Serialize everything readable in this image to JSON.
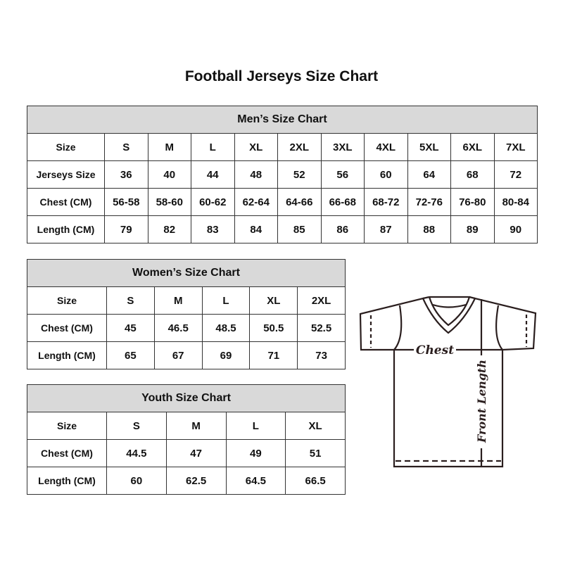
{
  "title": "Football Jerseys Size Chart",
  "men": {
    "caption": "Men’s Size Chart",
    "first_col_width": 110,
    "rows": [
      [
        "Size",
        "S",
        "M",
        "L",
        "XL",
        "2XL",
        "3XL",
        "4XL",
        "5XL",
        "6XL",
        "7XL"
      ],
      [
        "Jerseys Size",
        "36",
        "40",
        "44",
        "48",
        "52",
        "56",
        "60",
        "64",
        "68",
        "72"
      ],
      [
        "Chest (CM)",
        "56-58",
        "58-60",
        "60-62",
        "62-64",
        "64-66",
        "66-68",
        "68-72",
        "72-76",
        "76-80",
        "80-84"
      ],
      [
        "Length (CM)",
        "79",
        "82",
        "83",
        "84",
        "85",
        "86",
        "87",
        "88",
        "89",
        "90"
      ]
    ]
  },
  "women": {
    "caption": "Women’s Size Chart",
    "first_col_width": 113,
    "rows": [
      [
        "Size",
        "S",
        "M",
        "L",
        "XL",
        "2XL"
      ],
      [
        "Chest (CM)",
        "45",
        "46.5",
        "48.5",
        "50.5",
        "52.5"
      ],
      [
        "Length (CM)",
        "65",
        "67",
        "69",
        "71",
        "73"
      ]
    ]
  },
  "youth": {
    "caption": "Youth Size Chart",
    "first_col_width": 113,
    "rows": [
      [
        "Size",
        "S",
        "M",
        "L",
        "XL"
      ],
      [
        "Chest (CM)",
        "44.5",
        "47",
        "49",
        "51"
      ],
      [
        "Length (CM)",
        "60",
        "62.5",
        "64.5",
        "66.5"
      ]
    ]
  },
  "diagram": {
    "chest_label": "Chest",
    "length_label": "Front Length"
  }
}
